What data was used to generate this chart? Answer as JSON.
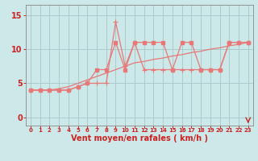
{
  "xlabel": "Vent moyen/en rafales ( km/h )",
  "bg_color": "#cce8e8",
  "grid_color": "#aacccc",
  "line_color": "#e87878",
  "text_color": "#cc2222",
  "xlim": [
    -0.5,
    23.5
  ],
  "ylim": [
    -1.2,
    16.5
  ],
  "yticks": [
    0,
    5,
    10,
    15
  ],
  "xticks": [
    0,
    1,
    2,
    3,
    4,
    5,
    6,
    7,
    8,
    9,
    10,
    11,
    12,
    13,
    14,
    15,
    16,
    17,
    18,
    19,
    20,
    21,
    22,
    23
  ],
  "series1_x": [
    0,
    1,
    2,
    3,
    4,
    5,
    6,
    7,
    8,
    9,
    10,
    11,
    12,
    13,
    14,
    15,
    16,
    17,
    18,
    19,
    20,
    21,
    22,
    23
  ],
  "series1_y": [
    4,
    4,
    4,
    4,
    4,
    4.5,
    5,
    7,
    7,
    11,
    7,
    11,
    11,
    11,
    11,
    7,
    11,
    11,
    7,
    7,
    7,
    11,
    11,
    11
  ],
  "series2_x": [
    0,
    1,
    2,
    3,
    4,
    5,
    6,
    7,
    8,
    9,
    10,
    11,
    12,
    13,
    14,
    15,
    16,
    17,
    18,
    19,
    20,
    21,
    22,
    23
  ],
  "series2_y": [
    4,
    4,
    4,
    4,
    4,
    4.5,
    5,
    5,
    5,
    14,
    7.5,
    11,
    7,
    7,
    7,
    7,
    7,
    7,
    7,
    7,
    7,
    11,
    11,
    11
  ],
  "series3_x": [
    0,
    1,
    2,
    3,
    4,
    5,
    6,
    7,
    8,
    9,
    10,
    11,
    12,
    13,
    14,
    15,
    16,
    17,
    18,
    19,
    20,
    21,
    22,
    23
  ],
  "series3_y": [
    4,
    4,
    4,
    4.2,
    4.5,
    5,
    5.5,
    6,
    6.5,
    7,
    7.5,
    8,
    8.2,
    8.5,
    8.7,
    9,
    9.2,
    9.5,
    9.7,
    10,
    10.2,
    10.5,
    10.7,
    11
  ],
  "arrow_color": "#cc2222",
  "marker1_size": 2.5,
  "marker2_size": 4,
  "linewidth": 0.9,
  "xlabel_fontsize": 7,
  "tick_fontsize_x": 5.0,
  "tick_fontsize_y": 7
}
